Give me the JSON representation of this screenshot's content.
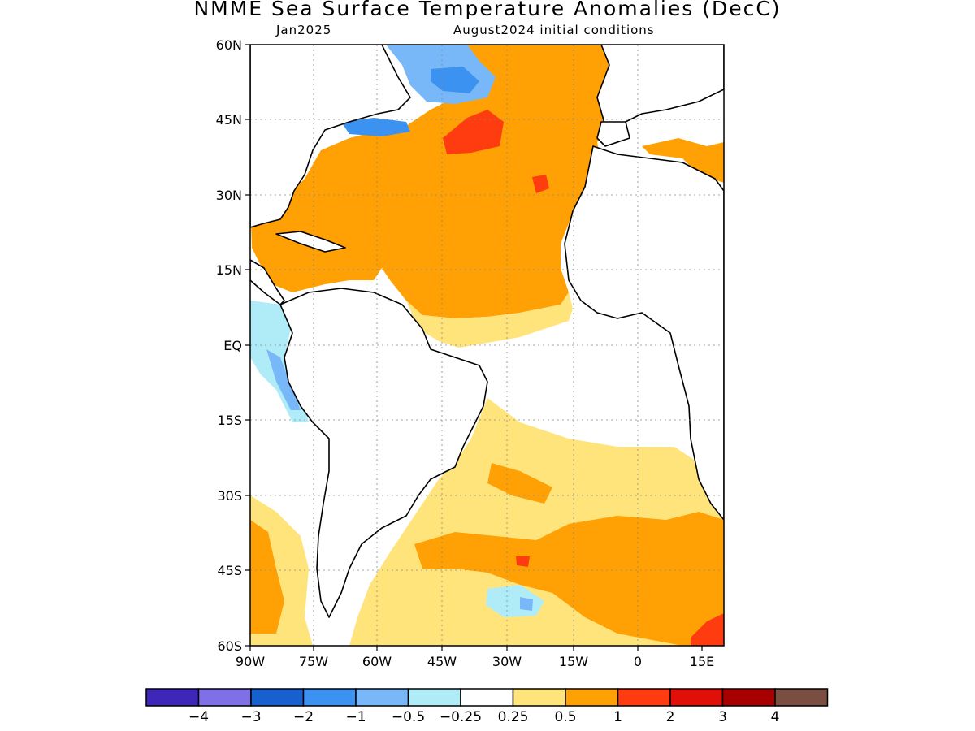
{
  "title": "NMME Sea Surface Temperature Anomalies (DecC)",
  "subtitle_left": "Jan2025",
  "subtitle_right": "August2024 initial conditions",
  "map": {
    "region": "Atlantic Ocean",
    "lat_labels": [
      "60N",
      "45N",
      "30N",
      "15N",
      "EQ",
      "15S",
      "30S",
      "45S",
      "60S"
    ],
    "lon_labels": [
      "90W",
      "75W",
      "60W",
      "45W",
      "30W",
      "15W",
      "0",
      "15E"
    ],
    "gridlines": true
  },
  "legend": {
    "colors": [
      "#3e26b8",
      "#7f70e8",
      "#1760d0",
      "#3c92f0",
      "#78b8f8",
      "#b0ecf8",
      "#ffffff",
      "#ffe47c",
      "#ffa004",
      "#ff3c10",
      "#e01008",
      "#a80000",
      "#7a4e40"
    ],
    "labels": [
      "−4",
      "−3",
      "−2",
      "−1",
      "−0.5",
      "−0.25",
      "0.25",
      "0.5",
      "1",
      "2",
      "3",
      "4"
    ]
  }
}
